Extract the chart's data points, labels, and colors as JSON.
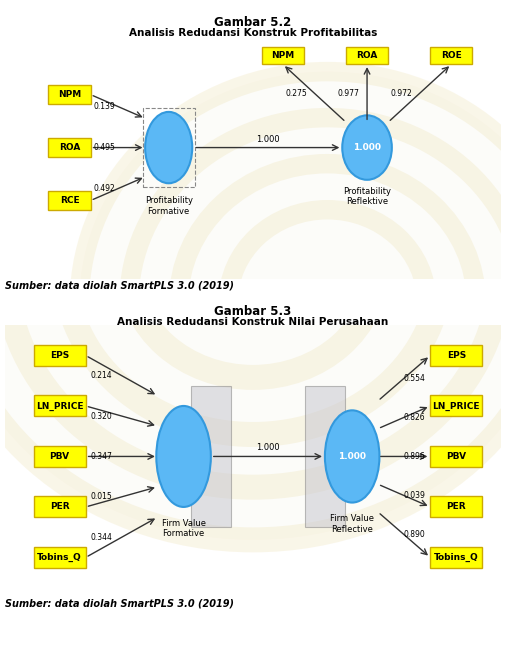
{
  "fig_title1": "Gambar 5.2",
  "fig_subtitle1": "Analisis Redudansi Konstruk Profitabilitas",
  "fig_title2": "Gambar 5.3",
  "fig_subtitle2": "Analisis Redudansi Konstruk Nilai Perusahaan",
  "source_text": "Sumber: data diolah SmartPLS 3.0 (2019)",
  "fig1": {
    "left_boxes": [
      "NPM",
      "ROA",
      "RCE"
    ],
    "left_weights": [
      "0.139",
      "0.495",
      "0.492"
    ],
    "formative_label_line1": "Profitability",
    "formative_label_line2": "Formative",
    "reflective_label_line1": "Profitability",
    "reflective_label_line2": "Reflektive",
    "center_arrow_label": "1.000",
    "reflective_center_text": "1.000",
    "top_boxes": [
      "NPM",
      "ROA",
      "ROE"
    ],
    "top_weights": [
      "0.275",
      "0.977",
      "0.972"
    ]
  },
  "fig2": {
    "left_boxes": [
      "EPS",
      "LN_PRICE",
      "PBV",
      "PER",
      "Tobins_Q"
    ],
    "left_weights": [
      "0.214",
      "0.320",
      "0.347",
      "0.015",
      "0.344"
    ],
    "formative_label_line1": "Firm Value",
    "formative_label_line2": "Formative",
    "reflective_label_line1": "Firm Value",
    "reflective_label_line2": "Reflective",
    "center_arrow_label": "1.000",
    "reflective_center_text": "1.000",
    "right_boxes": [
      "EPS",
      "LN_PRICE",
      "PBV",
      "PER",
      "Tobins_Q"
    ],
    "right_weights": [
      "0.554",
      "0.826",
      "0.896",
      "0.039",
      "0.890"
    ]
  },
  "colors": {
    "yellow_face": "#FFFF00",
    "yellow_edge": "#CCAA00",
    "blue_face": "#5BB8F5",
    "blue_edge": "#3399DD",
    "blue_text": "#FFFFFF",
    "arrow_col": "#333333",
    "grey_rect_face": "#C8C8D0",
    "grey_rect_edge": "#888888",
    "globe_ring": "#E8D89A",
    "globe_fill": "#EDE8D0",
    "frame_edge": "#000000",
    "frame_face": "#FFFFFF",
    "source_color": "#000000"
  }
}
